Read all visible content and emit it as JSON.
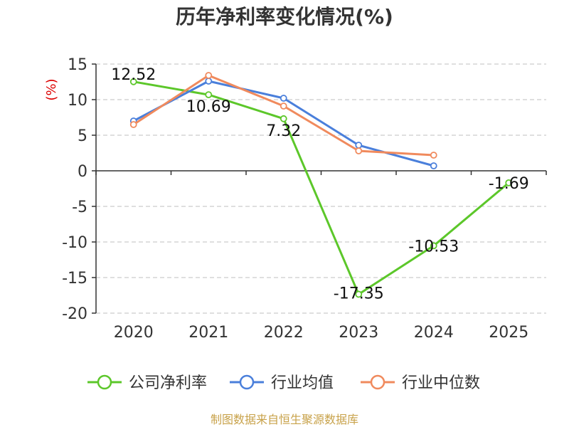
{
  "chart_data": {
    "type": "line",
    "title": "历年净利率变化情况(%)",
    "ylabel": "(%)",
    "xlabel": "",
    "categories": [
      "2020",
      "2021",
      "2022",
      "2023",
      "2024",
      "2025"
    ],
    "ylim": [
      -20,
      15
    ],
    "yticks": [
      15,
      10,
      5,
      0,
      -5,
      -10,
      -15,
      -20
    ],
    "ytick_labels": [
      "15",
      "10",
      "5",
      "0",
      "-5",
      "-10",
      "-15",
      "-20"
    ],
    "grid": true,
    "legend_position": "bottom",
    "series": [
      {
        "name": "公司净利率",
        "color": "#5cc72a",
        "values": [
          12.52,
          10.69,
          7.32,
          -17.35,
          -10.53,
          -1.69
        ],
        "labels": [
          "12.52",
          "10.69",
          "7.32",
          "-17.35",
          "-10.53",
          "-1.69"
        ]
      },
      {
        "name": "行业均值",
        "color": "#4a7fdb",
        "values": [
          7.0,
          12.6,
          10.2,
          3.6,
          0.7,
          null
        ]
      },
      {
        "name": "行业中位数",
        "color": "#f08a5d",
        "values": [
          6.5,
          13.4,
          9.1,
          2.8,
          2.2,
          null
        ]
      }
    ],
    "source": "制图数据来自恒生聚源数据库"
  }
}
